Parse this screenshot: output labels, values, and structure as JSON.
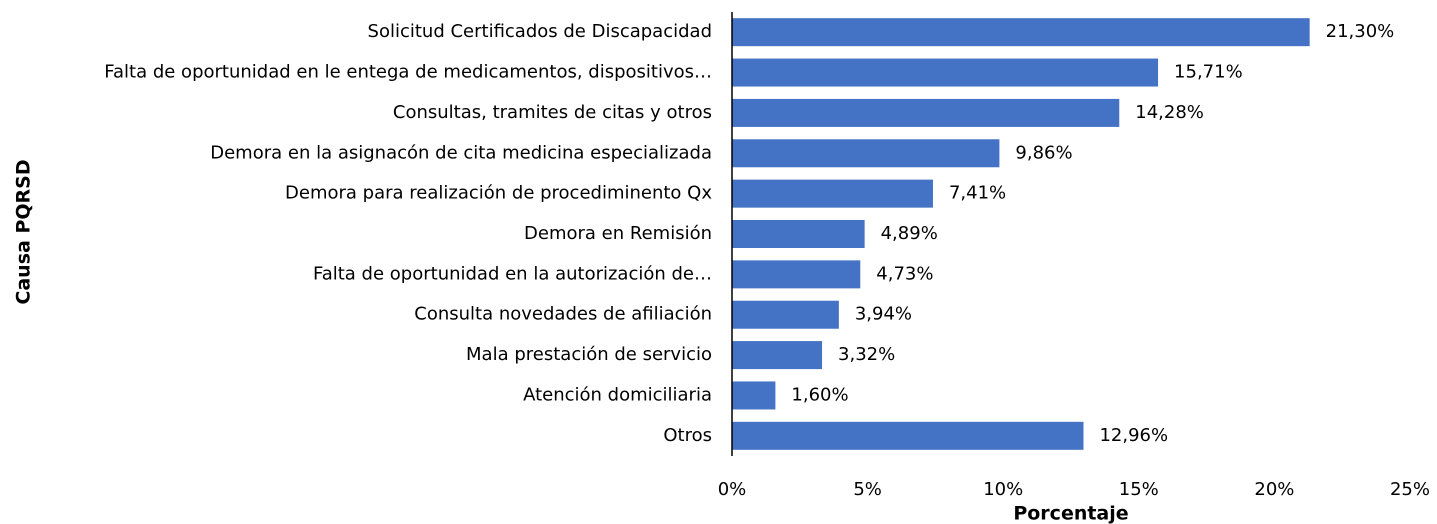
{
  "chart_data": {
    "type": "barh",
    "ylabel": "Causa PQRSD",
    "xlabel": "Porcentaje",
    "categories": [
      "Solicitud Certificados de Discapacidad",
      "Falta de oportunidad en le entega de medicamentos, dispositivos…",
      "Consultas, tramites de citas y otros",
      "Demora en la asignacón de cita medicina especializada",
      "Demora para realización de procediminento Qx",
      "Demora en Remisión",
      "Falta de oportunidad en la autorización de…",
      "Consulta novedades de afiliación",
      "Mala prestación de servicio",
      "Atención domiciliaria",
      "Otros"
    ],
    "values": [
      21.3,
      15.71,
      14.28,
      9.86,
      7.41,
      4.89,
      4.73,
      3.94,
      3.32,
      1.6,
      12.96
    ],
    "value_labels": [
      "21,30%",
      "15,71%",
      "14,28%",
      "9,86%",
      "7,41%",
      "4,89%",
      "4,73%",
      "3,94%",
      "3,32%",
      "1,60%",
      "12,96%"
    ],
    "color": "#4472c4",
    "xlim": [
      0,
      25
    ],
    "xticks": [
      {
        "value": 0,
        "label": "0%"
      },
      {
        "value": 5,
        "label": "5%"
      },
      {
        "value": 10,
        "label": "10%"
      },
      {
        "value": 15,
        "label": "15%"
      },
      {
        "value": 20,
        "label": "20%"
      },
      {
        "value": 25,
        "label": "25%"
      }
    ],
    "grid": false
  }
}
